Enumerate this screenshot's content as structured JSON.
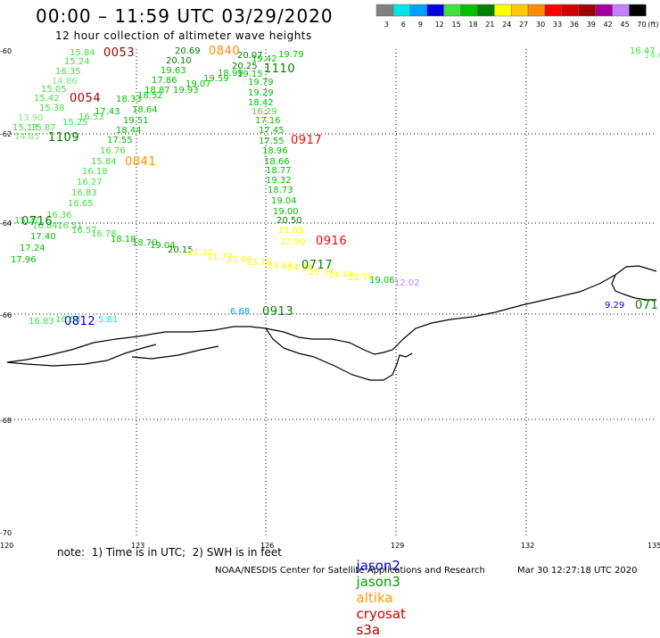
{
  "header": {
    "title": "00:00 – 11:59 UTC 03/29/2020",
    "subtitle": "12 hour collection of altimeter wave heights"
  },
  "color_scale": {
    "labels": [
      "3",
      "6",
      "9",
      "12",
      "15",
      "18",
      "21",
      "24",
      "27",
      "30",
      "33",
      "36",
      "39",
      "42",
      "45",
      "70"
    ],
    "unit": "(ft)",
    "colors": [
      "#808080",
      "#00e5e5",
      "#00a0ff",
      "#0000e0",
      "#40e040",
      "#00c000",
      "#008000",
      "#ffff00",
      "#ffc800",
      "#ff8c00",
      "#ff0000",
      "#d00000",
      "#a00000",
      "#a000a0",
      "#c080ff",
      "#000000"
    ]
  },
  "axes": {
    "x_ticks": [
      "120",
      "123",
      "126",
      "129",
      "132",
      "135"
    ],
    "y_ticks": [
      "-60",
      "-62",
      "-64",
      "-66",
      "-68",
      "-70"
    ]
  },
  "pass_labels": [
    {
      "text": "0053",
      "color": "#a00000"
    },
    {
      "text": "0840",
      "color": "#ff8c00"
    },
    {
      "text": "1110",
      "color": "#008000"
    },
    {
      "text": "0054",
      "color": "#a00000"
    },
    {
      "text": "0917",
      "color": "#ff0000"
    },
    {
      "text": "1109",
      "color": "#008000"
    },
    {
      "text": "0841",
      "color": "#ff8c00"
    },
    {
      "text": "0716",
      "color": "#008000"
    },
    {
      "text": "0916",
      "color": "#ff0000"
    },
    {
      "text": "0717",
      "color": "#008000"
    },
    {
      "text": "0913",
      "color": "#008000"
    },
    {
      "text": "0812",
      "color": "#0000e0"
    },
    {
      "text": "071",
      "color": "#008000"
    }
  ],
  "wave_heights": [
    {
      "text": "15.84",
      "color": "#40e040"
    },
    {
      "text": "15.24",
      "color": "#40e040"
    },
    {
      "text": "16.35",
      "color": "#40e040"
    },
    {
      "text": "14.86",
      "color": "#7fe87f"
    },
    {
      "text": "15.05",
      "color": "#40e040"
    },
    {
      "text": "15.42",
      "color": "#40e040"
    },
    {
      "text": "15.38",
      "color": "#40e040"
    },
    {
      "text": "13.90",
      "color": "#7fe87f"
    },
    {
      "text": "15.13",
      "color": "#40e040"
    },
    {
      "text": "15.87",
      "color": "#40e040"
    },
    {
      "text": "15.25",
      "color": "#40e040"
    },
    {
      "text": "14.65",
      "color": "#7fe87f"
    },
    {
      "text": "16.53",
      "color": "#40e040"
    },
    {
      "text": "17.43",
      "color": "#00c000"
    },
    {
      "text": "18.33",
      "color": "#00c000"
    },
    {
      "text": "18.64",
      "color": "#00c000"
    },
    {
      "text": "19.51",
      "color": "#00c000"
    },
    {
      "text": "18.44",
      "color": "#00c000"
    },
    {
      "text": "17.55",
      "color": "#00c000"
    },
    {
      "text": "16.76",
      "color": "#40e040"
    },
    {
      "text": "15.84",
      "color": "#40e040"
    },
    {
      "text": "16.18",
      "color": "#40e040"
    },
    {
      "text": "16.27",
      "color": "#40e040"
    },
    {
      "text": "16.83",
      "color": "#40e040"
    },
    {
      "text": "16.65",
      "color": "#40e040"
    },
    {
      "text": "16.36",
      "color": "#40e040"
    },
    {
      "text": "15.22",
      "color": "#40e040"
    },
    {
      "text": "16.84",
      "color": "#40e040"
    },
    {
      "text": "16.51",
      "color": "#40e040"
    },
    {
      "text": "16.57",
      "color": "#40e040"
    },
    {
      "text": "17.40",
      "color": "#00c000"
    },
    {
      "text": "17.24",
      "color": "#00c000"
    },
    {
      "text": "17.96",
      "color": "#00c000"
    },
    {
      "text": "16.78",
      "color": "#40e040"
    },
    {
      "text": "18.18",
      "color": "#00c000"
    },
    {
      "text": "18.70",
      "color": "#00c000"
    },
    {
      "text": "19.04",
      "color": "#00c000"
    },
    {
      "text": "20.15",
      "color": "#008000"
    },
    {
      "text": "21.32",
      "color": "#ffff00"
    },
    {
      "text": "21.73",
      "color": "#ffff00"
    },
    {
      "text": "22.69",
      "color": "#ffff00"
    },
    {
      "text": "23.70",
      "color": "#ffff00"
    },
    {
      "text": "24.64",
      "color": "#ffff00"
    },
    {
      "text": "24.94",
      "color": "#ffff00"
    },
    {
      "text": "25.74",
      "color": "#ffff00"
    },
    {
      "text": "24.44",
      "color": "#ffff00"
    },
    {
      "text": "22.70",
      "color": "#ffff00"
    },
    {
      "text": "19.06",
      "color": "#00c000"
    },
    {
      "text": "12.02",
      "color": "#c080ff"
    },
    {
      "text": "20.69",
      "color": "#008000"
    },
    {
      "text": "20.10",
      "color": "#008000"
    },
    {
      "text": "19.63",
      "color": "#00c000"
    },
    {
      "text": "17.86",
      "color": "#00c000"
    },
    {
      "text": "18.87",
      "color": "#00c000"
    },
    {
      "text": "19.93",
      "color": "#00c000"
    },
    {
      "text": "18.52",
      "color": "#00c000"
    },
    {
      "text": "19.07",
      "color": "#00c000"
    },
    {
      "text": "19.59",
      "color": "#00c000"
    },
    {
      "text": "18.99",
      "color": "#00c000"
    },
    {
      "text": "19.15",
      "color": "#00c000"
    },
    {
      "text": "20.07",
      "color": "#008000"
    },
    {
      "text": "19.42",
      "color": "#00c000"
    },
    {
      "text": "19.79",
      "color": "#00c000"
    },
    {
      "text": "20.25",
      "color": "#008000"
    },
    {
      "text": "19.79",
      "color": "#00c000"
    },
    {
      "text": "19.29",
      "color": "#00c000"
    },
    {
      "text": "18.42",
      "color": "#00c000"
    },
    {
      "text": "16.29",
      "color": "#40e040"
    },
    {
      "text": "17.16",
      "color": "#00c000"
    },
    {
      "text": "17.45",
      "color": "#00c000"
    },
    {
      "text": "17.55",
      "color": "#00c000"
    },
    {
      "text": "18.96",
      "color": "#00c000"
    },
    {
      "text": "18.66",
      "color": "#00c000"
    },
    {
      "text": "18.77",
      "color": "#00c000"
    },
    {
      "text": "19.32",
      "color": "#00c000"
    },
    {
      "text": "18.73",
      "color": "#00c000"
    },
    {
      "text": "19.04",
      "color": "#00c000"
    },
    {
      "text": "19.00",
      "color": "#00c000"
    },
    {
      "text": "20.50",
      "color": "#008000"
    },
    {
      "text": "21.69",
      "color": "#ffff00"
    },
    {
      "text": "22.90",
      "color": "#ffff00"
    },
    {
      "text": "6.68",
      "color": "#00a0ff"
    },
    {
      "text": "16.83",
      "color": "#40e040"
    },
    {
      "text": "16.58",
      "color": "#40e040"
    },
    {
      "text": "5.81",
      "color": "#00e5e5"
    },
    {
      "text": "9.29",
      "color": "#0000e0"
    },
    {
      "text": "16.47",
      "color": "#40e040"
    },
    {
      "text": "14.6",
      "color": "#7fe87f"
    }
  ],
  "legend": {
    "items": [
      {
        "name": "jason2",
        "color": "#0000e0"
      },
      {
        "name": "jason3",
        "color": "#00a000"
      },
      {
        "name": "altika",
        "color": "#ff9900"
      },
      {
        "name": "cryosat",
        "color": "#d00000"
      },
      {
        "name": "s3a",
        "color": "#a00000"
      }
    ]
  },
  "footer": {
    "note": "note:  1) Time is in UTC;  2) SWH is in feet",
    "credit": "NOAA/NESDIS Center for Satellite Applications and Research",
    "timestamp": "Mar 30 12:27:18 UTC 2020"
  }
}
